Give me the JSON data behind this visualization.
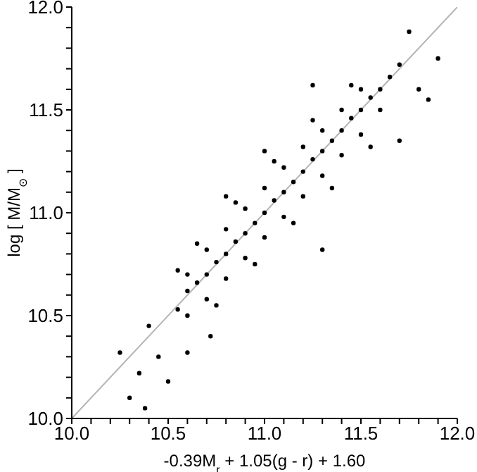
{
  "chart_data": {
    "type": "scatter",
    "xlabel": "-0.39M$_{r}$ + 1.05(g - r) + 1.60",
    "ylabel": "log [ M/M$_{⊙}$ ]",
    "xlim": [
      10,
      12
    ],
    "ylim": [
      10,
      12
    ],
    "xticks": [
      {
        "value": 10,
        "label": "10.0"
      },
      {
        "value": 10.1,
        "label": null
      },
      {
        "value": 10.2,
        "label": null
      },
      {
        "value": 10.3,
        "label": null
      },
      {
        "value": 10.4,
        "label": null
      },
      {
        "value": 10.5,
        "label": "10.5"
      },
      {
        "value": 10.6,
        "label": null
      },
      {
        "value": 10.7,
        "label": null
      },
      {
        "value": 10.8,
        "label": null
      },
      {
        "value": 10.9,
        "label": null
      },
      {
        "value": 11,
        "label": "11.0"
      },
      {
        "value": 11.1,
        "label": null
      },
      {
        "value": 11.2,
        "label": null
      },
      {
        "value": 11.3,
        "label": null
      },
      {
        "value": 11.4,
        "label": null
      },
      {
        "value": 11.5,
        "label": "11.5"
      },
      {
        "value": 11.6,
        "label": null
      },
      {
        "value": 11.7,
        "label": null
      },
      {
        "value": 11.8,
        "label": null
      },
      {
        "value": 11.9,
        "label": null
      },
      {
        "value": 12,
        "label": "12.0"
      }
    ],
    "yticks": [
      {
        "value": 10,
        "label": "10.0"
      },
      {
        "value": 10.1,
        "label": null
      },
      {
        "value": 10.2,
        "label": null
      },
      {
        "value": 10.3,
        "label": null
      },
      {
        "value": 10.4,
        "label": null
      },
      {
        "value": 10.5,
        "label": "10.5"
      },
      {
        "value": 10.6,
        "label": null
      },
      {
        "value": 10.7,
        "label": null
      },
      {
        "value": 10.8,
        "label": null
      },
      {
        "value": 10.9,
        "label": null
      },
      {
        "value": 11,
        "label": "11.0"
      },
      {
        "value": 11.1,
        "label": null
      },
      {
        "value": 11.2,
        "label": null
      },
      {
        "value": 11.3,
        "label": null
      },
      {
        "value": 11.4,
        "label": null
      },
      {
        "value": 11.5,
        "label": "11.5"
      },
      {
        "value": 11.6,
        "label": null
      },
      {
        "value": 11.7,
        "label": null
      },
      {
        "value": 11.8,
        "label": null
      },
      {
        "value": 11.9,
        "label": null
      },
      {
        "value": 12,
        "label": "12.0"
      }
    ],
    "series": [
      {
        "marker": "circle",
        "color": "#000000",
        "x": [
          10.55,
          10.6,
          10.65,
          10.7,
          10.75,
          10.8,
          10.85,
          10.9,
          10.95,
          11.0,
          11.05,
          11.1,
          11.15,
          11.2,
          11.25,
          11.3,
          11.35,
          11.4,
          11.45,
          11.5,
          11.55,
          11.6,
          11.65,
          11.7,
          10.6,
          10.7,
          10.8,
          10.9,
          11.0,
          11.1,
          11.2,
          11.3,
          11.4,
          11.5,
          10.65,
          10.85,
          11.05,
          11.25,
          11.45,
          10.6,
          10.7,
          10.8,
          10.9,
          11.0,
          11.1,
          11.2,
          11.3,
          11.4,
          11.5,
          11.6,
          10.75,
          10.95,
          11.15,
          11.35,
          11.55,
          10.25,
          10.3,
          10.35,
          10.4,
          10.45,
          10.5,
          10.6,
          10.72,
          11.3,
          11.7,
          11.8,
          11.9,
          11.75,
          11.25,
          11.0,
          10.8,
          10.55,
          11.85,
          10.38
        ],
        "values": [
          10.53,
          10.62,
          10.66,
          10.7,
          10.76,
          10.8,
          10.86,
          10.9,
          10.95,
          11.0,
          11.06,
          11.1,
          11.15,
          11.2,
          11.26,
          11.3,
          11.35,
          11.4,
          11.46,
          11.5,
          11.56,
          11.6,
          11.66,
          11.72,
          10.7,
          10.82,
          10.92,
          11.02,
          11.12,
          11.22,
          11.32,
          11.4,
          11.5,
          11.6,
          10.85,
          11.05,
          11.25,
          11.45,
          11.62,
          10.5,
          10.58,
          10.68,
          10.78,
          10.88,
          10.98,
          11.08,
          11.18,
          11.28,
          11.38,
          11.5,
          10.55,
          10.75,
          10.95,
          11.12,
          11.32,
          10.32,
          10.1,
          10.22,
          10.45,
          10.3,
          10.18,
          10.32,
          10.4,
          10.82,
          11.35,
          11.6,
          11.75,
          11.88,
          11.62,
          11.3,
          11.08,
          10.72,
          11.55,
          10.05
        ]
      },
      {
        "type": "line",
        "color": "#b4b4b4",
        "x": [
          10,
          12
        ],
        "values": [
          10,
          12
        ]
      }
    ]
  }
}
